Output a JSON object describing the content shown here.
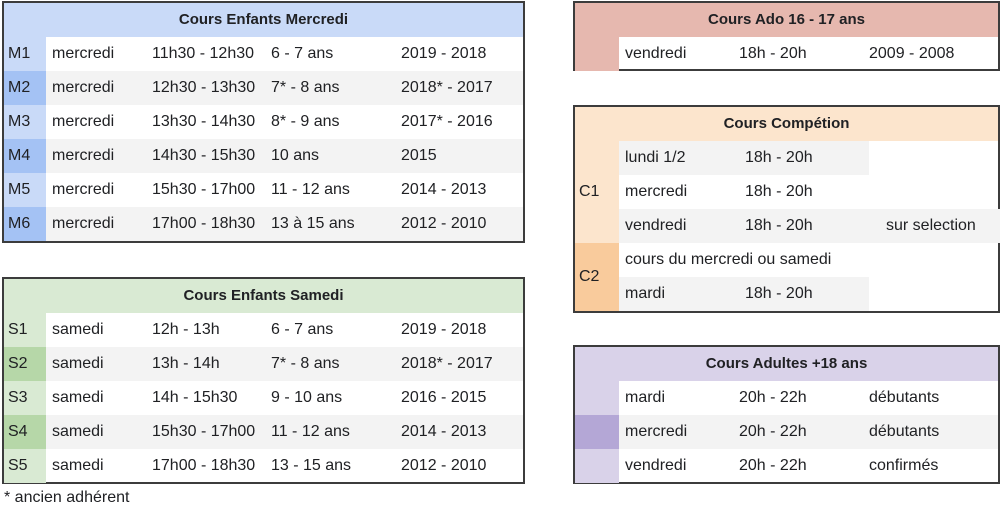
{
  "colors": {
    "mercredi_header": "#c9daf8",
    "mercredi_code_light": "#c9daf8",
    "mercredi_code_dark": "#a4c2f4",
    "samedi_header": "#d9ead3",
    "samedi_code_light": "#d9ead3",
    "samedi_code_dark": "#b6d7a8",
    "ado_header": "#e6b8af",
    "competition_header": "#fce5cd",
    "competition_c2": "#f9cb9c",
    "adultes_header": "#d9d2e9",
    "adultes_code_dark": "#b4a7d6"
  },
  "mercredi": {
    "title": "Cours Enfants Mercredi",
    "rows": [
      {
        "code": "M1",
        "day": "mercredi",
        "time": "11h30 - 12h30",
        "age": "6 - 7 ans",
        "years": "2019 - 2018"
      },
      {
        "code": "M2",
        "day": "mercredi",
        "time": "12h30 - 13h30",
        "age": "7* - 8 ans",
        "years": "2018* - 2017"
      },
      {
        "code": "M3",
        "day": "mercredi",
        "time": "13h30 - 14h30",
        "age": "8* - 9 ans",
        "years": "2017* - 2016"
      },
      {
        "code": "M4",
        "day": "mercredi",
        "time": "14h30 - 15h30",
        "age": "10 ans",
        "years": "2015"
      },
      {
        "code": "M5",
        "day": "mercredi",
        "time": "15h30 - 17h00",
        "age": "11 - 12 ans",
        "years": "2014 - 2013"
      },
      {
        "code": "M6",
        "day": "mercredi",
        "time": "17h00 - 18h30",
        "age": "13 à 15 ans",
        "years": "2012 - 2010"
      }
    ]
  },
  "samedi": {
    "title": "Cours Enfants Samedi",
    "rows": [
      {
        "code": "S1",
        "day": "samedi",
        "time": "12h - 13h",
        "age": "6 - 7 ans",
        "years": "2019 - 2018"
      },
      {
        "code": "S2",
        "day": "samedi",
        "time": "13h - 14h",
        "age": "7* - 8 ans",
        "years": "2018* - 2017"
      },
      {
        "code": "S3",
        "day": "samedi",
        "time": "14h - 15h30",
        "age": "9 - 10 ans",
        "years": "2016 - 2015"
      },
      {
        "code": "S4",
        "day": "samedi",
        "time": "15h30 - 17h00",
        "age": "11 - 12 ans",
        "years": "2014 - 2013"
      },
      {
        "code": "S5",
        "day": "samedi",
        "time": "17h00 - 18h30",
        "age": "13 - 15 ans",
        "years": "2012 - 2010"
      }
    ]
  },
  "ado": {
    "title": "Cours Ado 16 - 17 ans",
    "row": {
      "day": "vendredi",
      "time": "18h - 20h",
      "years": "2009 - 2008"
    }
  },
  "competition": {
    "title": "Cours Compétion",
    "c1_code": "C1",
    "c2_code": "C2",
    "c1_rows": [
      {
        "day": "lundi 1/2",
        "time": "18h - 20h"
      },
      {
        "day": "mercredi",
        "time": "18h - 20h"
      },
      {
        "day": "vendredi",
        "time": "18h - 20h"
      }
    ],
    "c2_text": "cours du mercredi ou samedi",
    "c2_row": {
      "day": "mardi",
      "time": "18h - 20h"
    },
    "selection": "sur selection"
  },
  "adultes": {
    "title": "Cours Adultes +18 ans",
    "rows": [
      {
        "day": "mardi",
        "time": "20h - 22h",
        "level": "débutants"
      },
      {
        "day": "mercredi",
        "time": "20h - 22h",
        "level": "débutants"
      },
      {
        "day": "vendredi",
        "time": "20h - 22h",
        "level": "confirmés"
      }
    ]
  },
  "footnote": "* ancien adhérent"
}
